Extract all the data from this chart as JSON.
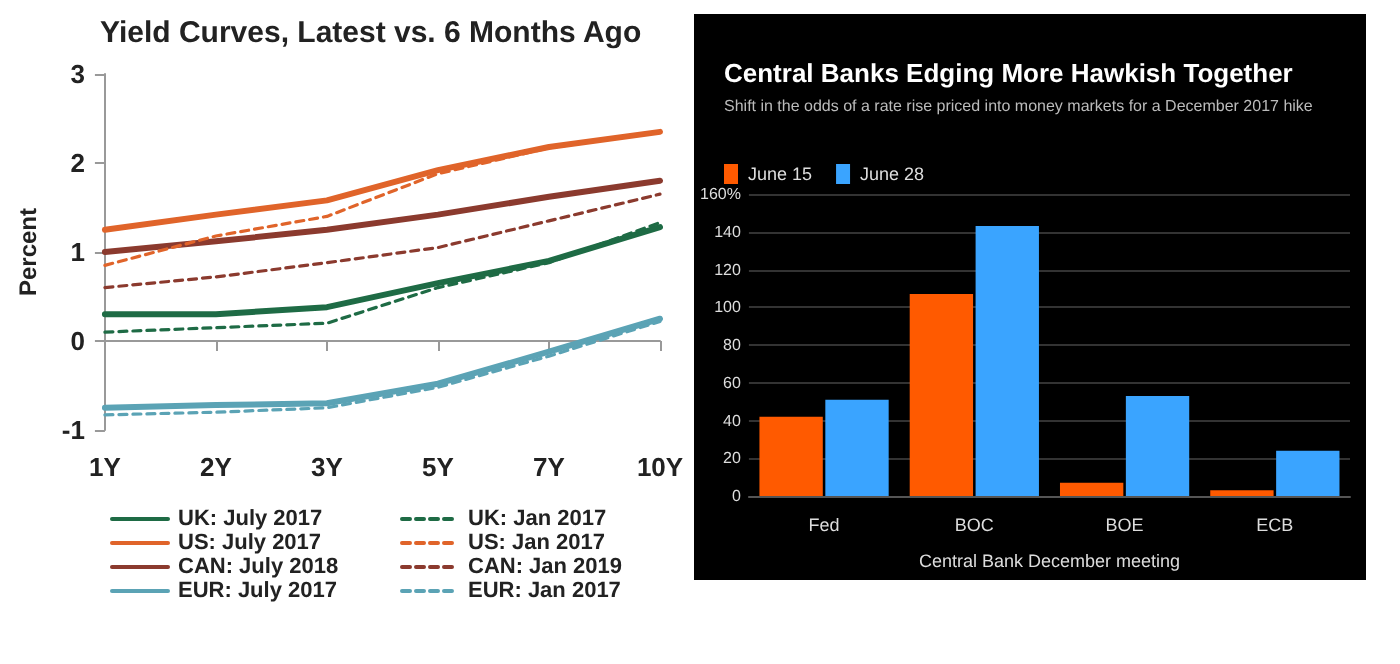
{
  "chart_data": [
    {
      "type": "line",
      "title": "Yield Curves, Latest vs. 6 Months Ago",
      "ylabel": "Percent",
      "categories": [
        "1Y",
        "2Y",
        "3Y",
        "5Y",
        "7Y",
        "10Y"
      ],
      "ylim": [
        -1,
        3
      ],
      "yticks": [
        -1,
        0,
        1,
        2,
        3
      ],
      "legend": "bottom",
      "marker": "none",
      "series": [
        {
          "name": "UK: July 2017",
          "color": "#1e6b45",
          "line_style": "solid",
          "values": [
            0.3,
            0.3,
            0.38,
            0.65,
            0.9,
            1.28
          ]
        },
        {
          "name": "US: July 2017",
          "color": "#e0642a",
          "line_style": "solid",
          "values": [
            1.25,
            1.42,
            1.58,
            1.92,
            2.18,
            2.35
          ]
        },
        {
          "name": "CAN: July 2018",
          "color": "#8b3a2e",
          "line_style": "solid",
          "values": [
            1.0,
            1.12,
            1.25,
            1.42,
            1.62,
            1.8
          ]
        },
        {
          "name": "EUR: July 2017",
          "color": "#5ba3b5",
          "line_style": "solid",
          "values": [
            -0.75,
            -0.72,
            -0.7,
            -0.48,
            -0.12,
            0.25
          ]
        },
        {
          "name": "UK: Jan 2017",
          "color": "#1e6b45",
          "line_style": "dashed",
          "values": [
            0.1,
            0.15,
            0.2,
            0.6,
            0.88,
            1.33
          ]
        },
        {
          "name": "US: Jan 2017",
          "color": "#e0642a",
          "line_style": "dashed",
          "values": [
            0.85,
            1.18,
            1.4,
            1.88,
            2.17,
            2.35
          ]
        },
        {
          "name": "CAN: Jan 2019",
          "color": "#8b3a2e",
          "line_style": "dashed",
          "values": [
            0.6,
            0.72,
            0.88,
            1.05,
            1.35,
            1.65
          ]
        },
        {
          "name": "EUR: Jan 2017",
          "color": "#5ba3b5",
          "line_style": "dashed",
          "values": [
            -0.83,
            -0.8,
            -0.75,
            -0.52,
            -0.17,
            0.22
          ]
        }
      ]
    },
    {
      "type": "bar",
      "title": "Central Banks Edging More Hawkish Together",
      "subtitle": "Shift in the odds of a rate rise priced into money markets for a December 2017 hike",
      "xlabel": "Central Bank December meeting",
      "categories": [
        "Fed",
        "BOC",
        "BOE",
        "ECB"
      ],
      "ylim": [
        0,
        160
      ],
      "yticks": [
        0,
        20,
        40,
        60,
        80,
        100,
        120,
        140,
        {
          "value": 160,
          "label": "160%"
        }
      ],
      "grid": "y",
      "legend": "top left",
      "series": [
        {
          "name": "June 15",
          "color": "#ff5a00",
          "values": [
            42,
            107,
            7,
            3
          ]
        },
        {
          "name": "June 28",
          "color": "#3aa4ff",
          "values": [
            51,
            143,
            53,
            24
          ]
        }
      ]
    }
  ]
}
